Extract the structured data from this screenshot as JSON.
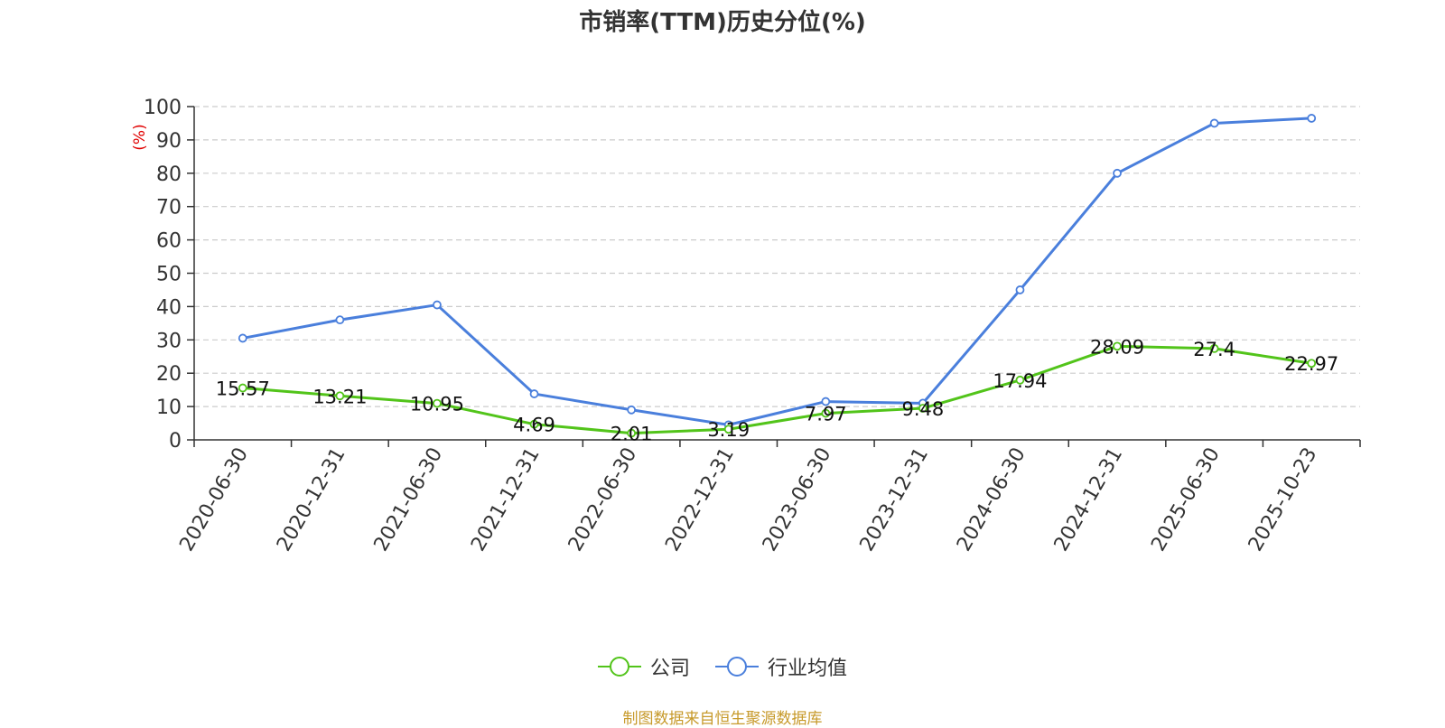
{
  "chart_data": {
    "type": "line",
    "title": "市销率(TTM)历史分位(%)",
    "ylabel": "(%)",
    "ylim": [
      0,
      100
    ],
    "yticks": [
      0,
      10,
      20,
      30,
      40,
      50,
      60,
      70,
      80,
      90,
      100
    ],
    "grid": true,
    "legend_position": "bottom",
    "categories": [
      "2020-06-30",
      "2020-12-31",
      "2021-06-30",
      "2021-12-31",
      "2022-06-30",
      "2022-12-31",
      "2023-06-30",
      "2023-12-31",
      "2024-06-30",
      "2024-12-31",
      "2025-06-30",
      "2025-10-23"
    ],
    "series": [
      {
        "name": "公司",
        "color": "#52c41a",
        "values": [
          15.57,
          13.21,
          10.95,
          4.69,
          2.01,
          3.19,
          7.97,
          9.48,
          17.94,
          28.09,
          27.4,
          22.97
        ],
        "data_labels": [
          "15.57",
          "13.21",
          "10.95",
          "4.69",
          "2.01",
          "3.19",
          "7.97",
          "9.48",
          "17.94",
          "28.09",
          "27.4",
          "22.97"
        ]
      },
      {
        "name": "行业均值",
        "color": "#4a7fdc",
        "values": [
          30.5,
          36,
          40.5,
          13.8,
          9,
          4.5,
          11.5,
          11,
          45,
          80,
          95,
          96.5
        ]
      }
    ]
  },
  "source_text": "制图数据来自恒生聚源数据库"
}
